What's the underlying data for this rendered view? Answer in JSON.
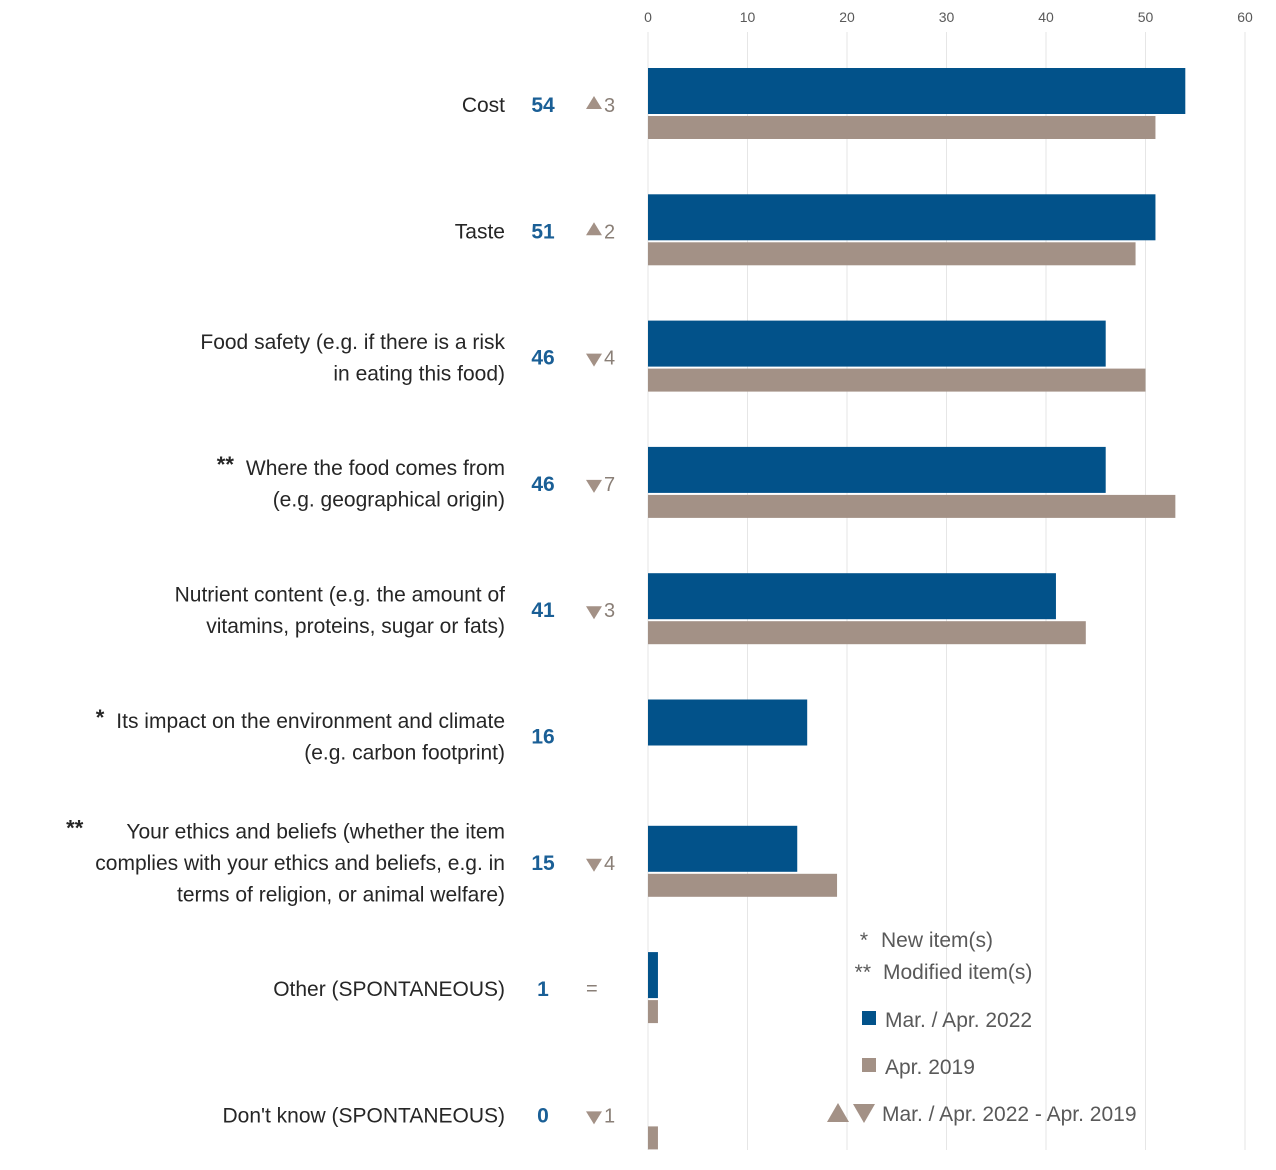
{
  "colors": {
    "series_2022": "#02528a",
    "series_2019": "#a39186",
    "delta": "#a39186",
    "value_text": "#1a5f96",
    "grid": "#e6e6e6"
  },
  "chart_data": {
    "type": "bar",
    "orientation": "horizontal",
    "xlim": [
      0,
      60
    ],
    "x_ticks": [
      "0",
      "10",
      "20",
      "30",
      "40",
      "50",
      "60"
    ],
    "grid": true,
    "legend_placement": "bottom-right",
    "categories": [
      {
        "lines": [
          "Cost"
        ],
        "marker": "",
        "value_label": "54",
        "delta_dir": "up",
        "delta_text": "3"
      },
      {
        "lines": [
          "Taste"
        ],
        "marker": "",
        "value_label": "51",
        "delta_dir": "up",
        "delta_text": "2"
      },
      {
        "lines": [
          "Food safety (e.g. if there is a risk",
          "in eating this food)"
        ],
        "marker": "",
        "value_label": "46",
        "delta_dir": "down",
        "delta_text": "4"
      },
      {
        "lines": [
          "Where the food comes from",
          "(e.g. geographical origin)"
        ],
        "marker": "**",
        "value_label": "46",
        "delta_dir": "down",
        "delta_text": "7"
      },
      {
        "lines": [
          "Nutrient content (e.g. the amount of",
          "vitamins, proteins, sugar or fats)"
        ],
        "marker": "",
        "value_label": "41",
        "delta_dir": "down",
        "delta_text": "3"
      },
      {
        "lines": [
          "Its impact on the environment and climate",
          "(e.g. carbon footprint)"
        ],
        "marker": "*",
        "value_label": "16",
        "delta_dir": "none",
        "delta_text": ""
      },
      {
        "lines": [
          "Your ethics and beliefs (whether the item",
          "complies with your ethics and beliefs, e.g. in",
          "terms of religion, or animal welfare)"
        ],
        "marker": "**",
        "value_label": "15",
        "delta_dir": "down",
        "delta_text": "4"
      },
      {
        "lines": [
          "Other (SPONTANEOUS)"
        ],
        "marker": "",
        "value_label": "1",
        "delta_dir": "equal",
        "delta_text": "="
      },
      {
        "lines": [
          "Don't know (SPONTANEOUS)"
        ],
        "marker": "",
        "value_label": "0",
        "delta_dir": "down",
        "delta_text": "1"
      }
    ],
    "series": [
      {
        "name": "Mar. / Apr. 2022",
        "values": [
          54,
          51,
          46,
          46,
          41,
          16,
          15,
          1,
          0
        ]
      },
      {
        "name": "Apr. 2019",
        "values": [
          51,
          49,
          50,
          53,
          44,
          null,
          19,
          1,
          1
        ]
      }
    ],
    "legend": {
      "new_item_marker": "*",
      "new_item_label": "New item(s)",
      "modified_item_marker": "**",
      "modified_item_label": "Modified item(s)",
      "series_2022_label": "Mar. / Apr. 2022",
      "series_2019_label": "Apr. 2019",
      "delta_label": "Mar. / Apr. 2022 - Apr. 2019"
    }
  }
}
